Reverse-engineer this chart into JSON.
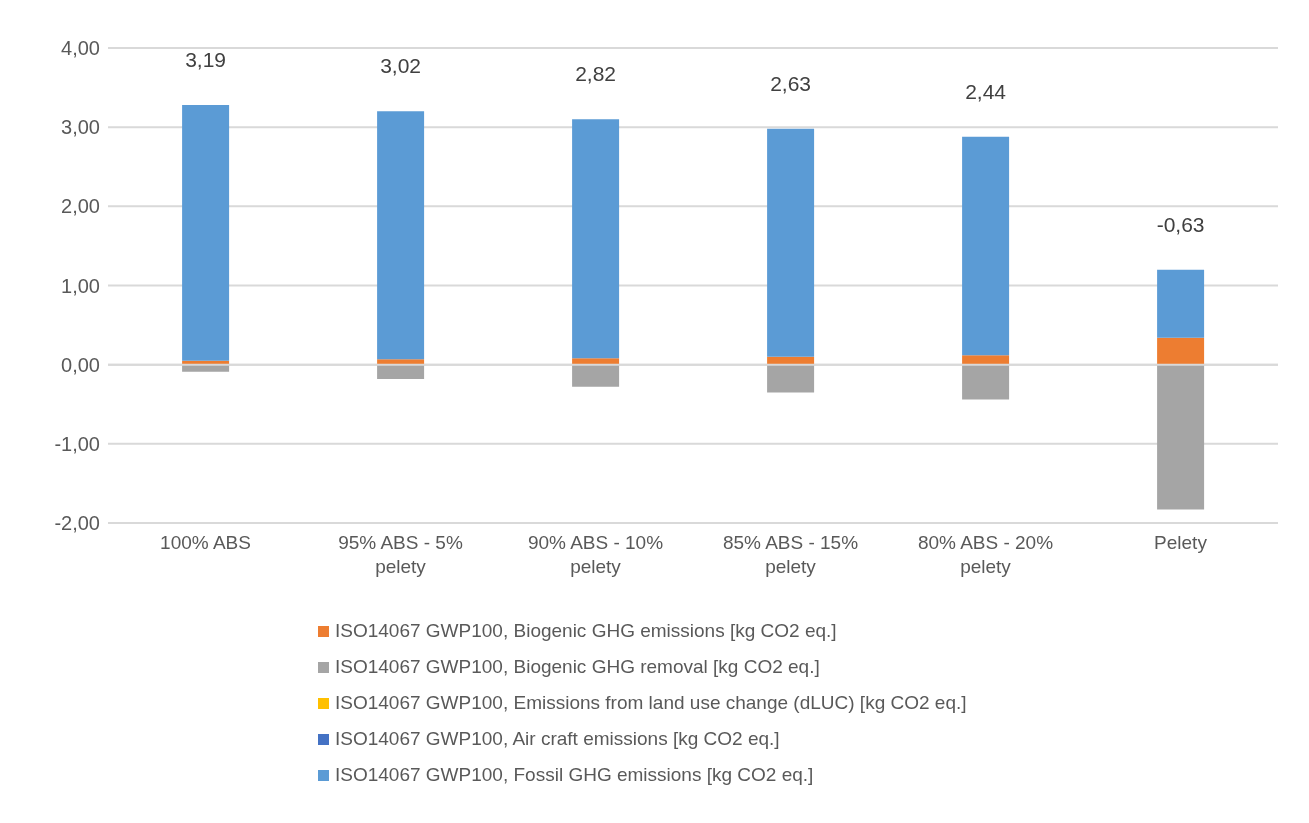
{
  "chart_data": {
    "type": "bar",
    "stacked": true,
    "categories": [
      "100% ABS",
      "95% ABS - 5% pelety",
      "90% ABS - 10% pelety",
      "85% ABS - 15% pelety",
      "80% ABS -  20% pelety",
      "Pelety"
    ],
    "series": [
      {
        "name": "ISO14067 GWP100, Biogenic GHG emissions [kg CO2 eq.]",
        "color": "#ed7d31",
        "values": [
          0.05,
          0.07,
          0.08,
          0.1,
          0.12,
          0.34
        ]
      },
      {
        "name": "ISO14067 GWP100, Biogenic GHG removal [kg CO2 eq.]",
        "color": "#a5a5a5",
        "values": [
          -0.09,
          -0.18,
          -0.28,
          -0.35,
          -0.44,
          -1.83
        ]
      },
      {
        "name": "ISO14067 GWP100, Emissions from land use change (dLUC) [kg CO2 eq.]",
        "color": "#ffc000",
        "values": [
          0,
          0,
          0,
          0,
          0,
          0
        ]
      },
      {
        "name": "ISO14067 GWP100, Air craft emissions [kg CO2 eq.]",
        "color": "#4472c4",
        "values": [
          0,
          0,
          0,
          0,
          0,
          0
        ]
      },
      {
        "name": "ISO14067 GWP100, Fossil GHG emissions [kg CO2 eq.]",
        "color": "#5b9bd5",
        "values": [
          3.23,
          3.13,
          3.02,
          2.88,
          2.76,
          0.86
        ]
      }
    ],
    "totals": [
      "3,19",
      "3,02",
      "2,82",
      "2,63",
      "2,44",
      "-0,63"
    ],
    "ylim": [
      -2,
      4
    ],
    "yticks": [
      {
        "value": -2,
        "label": "-2,00"
      },
      {
        "value": -1,
        "label": "-1,00"
      },
      {
        "value": 0,
        "label": "0,00"
      },
      {
        "value": 1,
        "label": "1,00"
      },
      {
        "value": 2,
        "label": "2,00"
      },
      {
        "value": 3,
        "label": "3,00"
      },
      {
        "value": 4,
        "label": "4,00"
      }
    ],
    "grid": "y",
    "legend": "bottom"
  }
}
